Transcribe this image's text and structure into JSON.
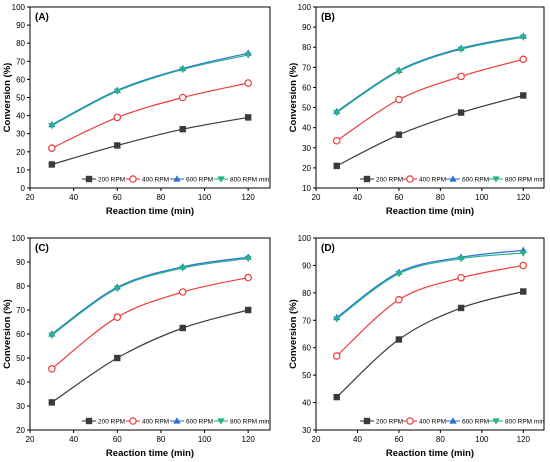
{
  "colors": {
    "200 RPM": "#3a3a3a",
    "400 RPM": "#ee3b3b",
    "600 RPM": "#2f6fd6",
    "800 RPM min": "#26b38a"
  },
  "chart_data": [
    {
      "type": "line",
      "panel_label": "(A)",
      "xlabel": "Reaction time (min)",
      "ylabel": "Conversion (%)",
      "xlim": [
        20,
        130
      ],
      "ylim": [
        0,
        100
      ],
      "xticks": [
        20,
        40,
        60,
        80,
        100,
        120
      ],
      "yticks": [
        0,
        10,
        20,
        30,
        40,
        50,
        60,
        70,
        80,
        90,
        100
      ],
      "x": [
        30,
        60,
        90,
        120
      ],
      "legend_position": "bottom-right",
      "series": [
        {
          "name": "200 RPM",
          "marker": "square",
          "values": [
            13,
            23.5,
            32.5,
            39
          ]
        },
        {
          "name": "400 RPM",
          "marker": "circle",
          "values": [
            22,
            39,
            50,
            58
          ]
        },
        {
          "name": "600 RPM",
          "marker": "triangle-up",
          "values": [
            35,
            54,
            66,
            74.5
          ]
        },
        {
          "name": "800 RPM min",
          "marker": "triangle-down",
          "values": [
            34.5,
            53.5,
            65.5,
            73.5
          ]
        }
      ]
    },
    {
      "type": "line",
      "panel_label": "(B)",
      "xlabel": "Reaction time (min)",
      "ylabel": "Conversion (%)",
      "xlim": [
        20,
        130
      ],
      "ylim": [
        10,
        100
      ],
      "xticks": [
        20,
        40,
        60,
        80,
        100,
        120
      ],
      "yticks": [
        10,
        20,
        30,
        40,
        50,
        60,
        70,
        80,
        90,
        100
      ],
      "x": [
        30,
        60,
        90,
        120
      ],
      "legend_position": "bottom-right",
      "series": [
        {
          "name": "200 RPM",
          "marker": "square",
          "values": [
            21,
            36.5,
            47.5,
            56
          ]
        },
        {
          "name": "400 RPM",
          "marker": "circle",
          "values": [
            33.5,
            54,
            65.5,
            74
          ]
        },
        {
          "name": "600 RPM",
          "marker": "triangle-up",
          "values": [
            48,
            68.5,
            79.5,
            85.5
          ]
        },
        {
          "name": "800 RPM min",
          "marker": "triangle-down",
          "values": [
            47.5,
            68,
            79,
            85
          ]
        }
      ]
    },
    {
      "type": "line",
      "panel_label": "(C)",
      "xlabel": "Reaction time (min)",
      "ylabel": "Conversion (%)",
      "xlim": [
        20,
        130
      ],
      "ylim": [
        20,
        100
      ],
      "xticks": [
        20,
        40,
        60,
        80,
        100,
        120
      ],
      "yticks": [
        20,
        30,
        40,
        50,
        60,
        70,
        80,
        90,
        100
      ],
      "x": [
        30,
        60,
        90,
        120
      ],
      "legend_position": "bottom-right",
      "series": [
        {
          "name": "200 RPM",
          "marker": "square",
          "values": [
            31.5,
            50,
            62.5,
            70
          ]
        },
        {
          "name": "400 RPM",
          "marker": "circle",
          "values": [
            45.5,
            67,
            77.5,
            83.5
          ]
        },
        {
          "name": "600 RPM",
          "marker": "triangle-up",
          "values": [
            60,
            79.5,
            88,
            92
          ]
        },
        {
          "name": "800 RPM min",
          "marker": "triangle-down",
          "values": [
            59.5,
            79,
            87.5,
            91.5
          ]
        }
      ]
    },
    {
      "type": "line",
      "panel_label": "(D)",
      "xlabel": "Reaction time (min)",
      "ylabel": "Conversion (%)",
      "xlim": [
        20,
        130
      ],
      "ylim": [
        30,
        100
      ],
      "xticks": [
        20,
        40,
        60,
        80,
        100,
        120
      ],
      "yticks": [
        30,
        40,
        50,
        60,
        70,
        80,
        90,
        100
      ],
      "x": [
        30,
        60,
        90,
        120
      ],
      "legend_position": "bottom-right",
      "series": [
        {
          "name": "200 RPM",
          "marker": "square",
          "values": [
            42,
            63,
            74.5,
            80.5
          ]
        },
        {
          "name": "400 RPM",
          "marker": "circle",
          "values": [
            57,
            77.5,
            85.5,
            90
          ]
        },
        {
          "name": "600 RPM",
          "marker": "triangle-up",
          "values": [
            71,
            87.5,
            93,
            95.5
          ]
        },
        {
          "name": "800 RPM min",
          "marker": "triangle-down",
          "values": [
            70.5,
            87,
            92.5,
            94.5
          ]
        }
      ]
    }
  ]
}
